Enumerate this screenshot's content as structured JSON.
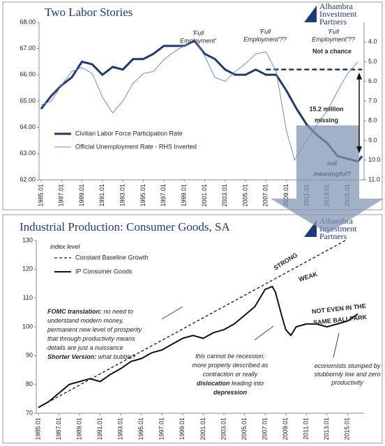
{
  "chart_data": [
    {
      "type": "line",
      "title": "Two Labor Stories",
      "logo": [
        "Alhambra",
        "Investment",
        "Partners"
      ],
      "xlim": [
        1984.8,
        2016.6
      ],
      "ylim": [
        62,
        68
      ],
      "y2lim": [
        11,
        3
      ],
      "xticks": [
        {
          "value": 1985,
          "label": "1985.01"
        },
        {
          "value": 1987,
          "label": "1987.01"
        },
        {
          "value": 1989,
          "label": "1989.01"
        },
        {
          "value": 1991,
          "label": "1991.01"
        },
        {
          "value": 1993,
          "label": "1993.01"
        },
        {
          "value": 1995,
          "label": "1995.01"
        },
        {
          "value": 1997,
          "label": "1997.01"
        },
        {
          "value": 1999,
          "label": "1999.01"
        },
        {
          "value": 2001,
          "label": "2001.01"
        },
        {
          "value": 2003,
          "label": "2003.01"
        },
        {
          "value": 2005,
          "label": "2005.01"
        },
        {
          "value": 2007,
          "label": "2007.01"
        },
        {
          "value": 2009,
          "label": "2009.01"
        },
        {
          "value": 2011,
          "label": "2011.01"
        },
        {
          "value": 2013,
          "label": "2013.01"
        },
        {
          "value": 2015,
          "label": "2015.01"
        }
      ],
      "yticks": [
        {
          "value": 62,
          "label": "62.00"
        },
        {
          "value": 63,
          "label": "63.00"
        },
        {
          "value": 64,
          "label": "64.00"
        },
        {
          "value": 65,
          "label": "65.00"
        },
        {
          "value": 66,
          "label": "66.00"
        },
        {
          "value": 67,
          "label": "67.00"
        },
        {
          "value": 68,
          "label": "68.00"
        }
      ],
      "y2ticks": [
        {
          "value": 4,
          "label": "4.0"
        },
        {
          "value": 5,
          "label": "5.0"
        },
        {
          "value": 6,
          "label": "6.0"
        },
        {
          "value": 7,
          "label": "7.0"
        },
        {
          "value": 8,
          "label": "8.0"
        },
        {
          "value": 9,
          "label": "9.0"
        },
        {
          "value": 10,
          "label": "10.0"
        },
        {
          "value": 11,
          "label": "11.0"
        }
      ],
      "series": [
        {
          "name": "Civilian Labor Force Participation Rate",
          "color": "#1f3a6e",
          "width": 3,
          "x": [
            1985,
            1986,
            1987,
            1988,
            1989,
            1990,
            1991,
            1992,
            1993,
            1994,
            1995,
            1996,
            1997,
            1998,
            1999,
            2000,
            2001,
            2002,
            2003,
            2004,
            2005,
            2006,
            2007,
            2008,
            2009,
            2010,
            2011,
            2012,
            2013,
            2014,
            2015,
            2016,
            2016.4
          ],
          "values": [
            64.7,
            65.2,
            65.6,
            65.9,
            66.5,
            66.4,
            66.0,
            66.3,
            66.2,
            66.6,
            66.6,
            66.8,
            67.1,
            67.1,
            67.1,
            67.3,
            66.8,
            66.6,
            66.2,
            66.0,
            66.0,
            66.2,
            66.0,
            66.0,
            65.4,
            64.7,
            64.1,
            63.7,
            63.4,
            62.9,
            62.8,
            62.7,
            62.9
          ]
        },
        {
          "name": "Official Unemployment Rate - RHS Inverted",
          "color": "#6d8fc4",
          "width": 1,
          "axis": "y2",
          "x": [
            1985,
            1986,
            1987,
            1988,
            1989,
            1990,
            1991,
            1992,
            1993,
            1994,
            1995,
            1996,
            1997,
            1998,
            1999,
            2000,
            2001,
            2002,
            2003,
            2004,
            2005,
            2006,
            2007,
            2008,
            2009,
            2009.8,
            2010,
            2011,
            2012,
            2013,
            2014,
            2015,
            2016
          ],
          "values": [
            7.2,
            7.0,
            6.2,
            5.5,
            5.3,
            5.6,
            6.8,
            7.6,
            7.0,
            6.1,
            5.6,
            5.5,
            4.9,
            4.5,
            4.2,
            3.9,
            4.7,
            5.8,
            6.0,
            5.5,
            5.1,
            4.6,
            4.5,
            5.5,
            8.5,
            10.0,
            9.8,
            9.0,
            8.2,
            7.5,
            6.5,
            5.6,
            5.0
          ]
        }
      ],
      "reference_line": {
        "value": 66.2,
        "from": 2007,
        "to": 2016.4
      },
      "annotations": [
        {
          "lines": [
            "'Full",
            "Employment'"
          ],
          "color": "#c0141c",
          "italic": true
        },
        {
          "lines": [
            "'Full",
            "Employment'??"
          ],
          "color": "#c0141c",
          "italic": true
        },
        {
          "lines": [
            "'Full",
            "Employment'??"
          ],
          "color": "#c0141c",
          "italic": true
        },
        {
          "lines": [
            "Not a chance"
          ],
          "color": "#e01010",
          "bold": true
        },
        {
          "lines": [
            "15.2 million",
            "missing"
          ],
          "color": "#111",
          "bold": true
        },
        {
          "lines": [
            "not",
            "meaningful?"
          ],
          "color": "#111",
          "bold": true,
          "italic": true
        }
      ]
    },
    {
      "type": "line",
      "title": "Industrial Production: Consumer Goods, SA",
      "logo": [
        "Alhambra",
        "Investment",
        "Partners"
      ],
      "xlim": [
        1984.8,
        2016.6
      ],
      "ylim": [
        70,
        130
      ],
      "xticks": [
        {
          "value": 1985,
          "label": "1985.01"
        },
        {
          "value": 1987,
          "label": "1987.01"
        },
        {
          "value": 1989,
          "label": "1989.01"
        },
        {
          "value": 1991,
          "label": "1991.01"
        },
        {
          "value": 1993,
          "label": "1993.01"
        },
        {
          "value": 1995,
          "label": "1995.01"
        },
        {
          "value": 1997,
          "label": "1997.01"
        },
        {
          "value": 1999,
          "label": "1999.01"
        },
        {
          "value": 2001,
          "label": "2001.01"
        },
        {
          "value": 2003,
          "label": "2003.01"
        },
        {
          "value": 2005,
          "label": "2005.01"
        },
        {
          "value": 2007,
          "label": "2007.01"
        },
        {
          "value": 2009,
          "label": "2009.01"
        },
        {
          "value": 2011,
          "label": "2011.01"
        },
        {
          "value": 2013,
          "label": "2013.01"
        },
        {
          "value": 2015,
          "label": "2015.01"
        }
      ],
      "yticks": [
        70,
        80,
        90,
        100,
        110,
        120,
        130
      ],
      "series": [
        {
          "name": "Constant Baseline Growth",
          "color": "#111",
          "width": 1.3,
          "dash": true,
          "x": [
            1985,
            2014.8
          ],
          "values": [
            72,
            130
          ]
        },
        {
          "name": "IP Consumer Goods",
          "color": "#111",
          "width": 2,
          "x": [
            1985,
            1986,
            1987,
            1988,
            1989,
            1990,
            1991,
            1992,
            1993,
            1994,
            1995,
            1996,
            1997,
            1998,
            1999,
            2000,
            2001,
            2002,
            2003,
            2004,
            2005,
            2006,
            2007,
            2007.7,
            2008,
            2008.6,
            2009,
            2009.5,
            2010,
            2011,
            2012,
            2013,
            2014,
            2015,
            2016
          ],
          "values": [
            72,
            74,
            77,
            80,
            81,
            82,
            81,
            83.5,
            85.5,
            88,
            89,
            91,
            92,
            94,
            96,
            97,
            96,
            98,
            99,
            101,
            104,
            107,
            113,
            114,
            112,
            104,
            99,
            97,
            100,
            101,
            101,
            100,
            101,
            102,
            104.5
          ]
        }
      ],
      "annotations": [
        {
          "lines": [
            [
              "index level"
            ]
          ],
          "color": "#333",
          "italic": true
        },
        {
          "lines": [
            [
              "STRONG"
            ]
          ],
          "color": "#8c8c1e",
          "bold": true
        },
        {
          "lines": [
            [
              "WEAK"
            ]
          ],
          "color": "#e01010",
          "bold": true
        },
        {
          "lines": [
            [
              "NOT EVEN IN THE"
            ],
            [
              "SAME BALLPARK"
            ]
          ],
          "color": "#4a8bd6",
          "bold": true
        },
        {
          "lines": [
            [
              {
                "text": "FOMC translation:",
                "bold": true
              },
              {
                "text": " no need to"
              }
            ],
            [
              "understand modern money,"
            ],
            [
              "permanent new level of prosperity"
            ],
            [
              "that through productivity means"
            ],
            [
              "details are just a nuissance"
            ],
            [
              {
                "text": "Shorter Version:",
                "bold": true
              },
              {
                "text": " what bubble?"
              }
            ]
          ],
          "color": "#111",
          "italic": true
        },
        {
          "lines": [
            [
              "this cannot be recession;"
            ],
            [
              "more properly described as"
            ],
            [
              "contraction or really"
            ],
            [
              {
                "text": "dislocation",
                "bold": true
              },
              {
                "text": " leading into"
              }
            ],
            [
              {
                "text": "depression",
                "bold": true
              }
            ]
          ],
          "color": "#111",
          "italic": true
        },
        {
          "lines": [
            [
              "economists stumped by"
            ],
            [
              "stubbornly low and zero"
            ],
            [
              "productivity"
            ]
          ],
          "color": "#111",
          "italic": true
        }
      ]
    }
  ]
}
